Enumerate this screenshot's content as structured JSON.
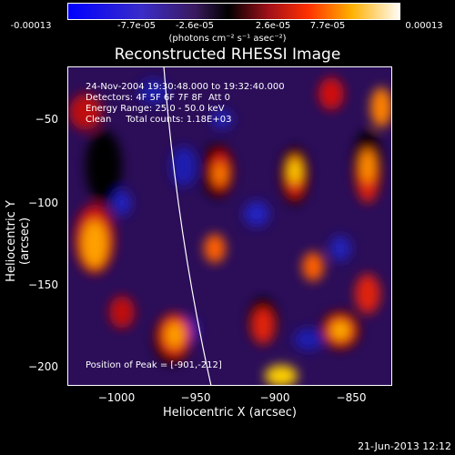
{
  "colorbar": {
    "ticks": [
      "-0.00013",
      "-7.7e-05",
      "-2.6e-05",
      "2.6e-05",
      "7.7e-05",
      "0.00013"
    ],
    "unit": "(photons cm⁻² s⁻¹ asec⁻²)"
  },
  "title": "Reconstructed RHESSI Image",
  "info": {
    "line1": "24-Nov-2004 19:30:48.000 to 19:32:40.000",
    "line2": "Detectors: 4F 5F 6F 7F 8F  Att 0",
    "line3": "Energy Range: 25.0 - 50.0 keV",
    "line4": "Clean     Total counts: 1.18E+03",
    "peak": "Position of Peak = [-901,-212]"
  },
  "axes": {
    "xlabel": "Heliocentric X (arcsec)",
    "ylabel": "Heliocentric Y (arcsec)",
    "xticks": [
      "−1000",
      "−950",
      "−900",
      "−850"
    ],
    "yticks": [
      "−50",
      "−100",
      "−150",
      "−200"
    ]
  },
  "footer": {
    "timestamp": "21-Jun-2013 12:12"
  }
}
